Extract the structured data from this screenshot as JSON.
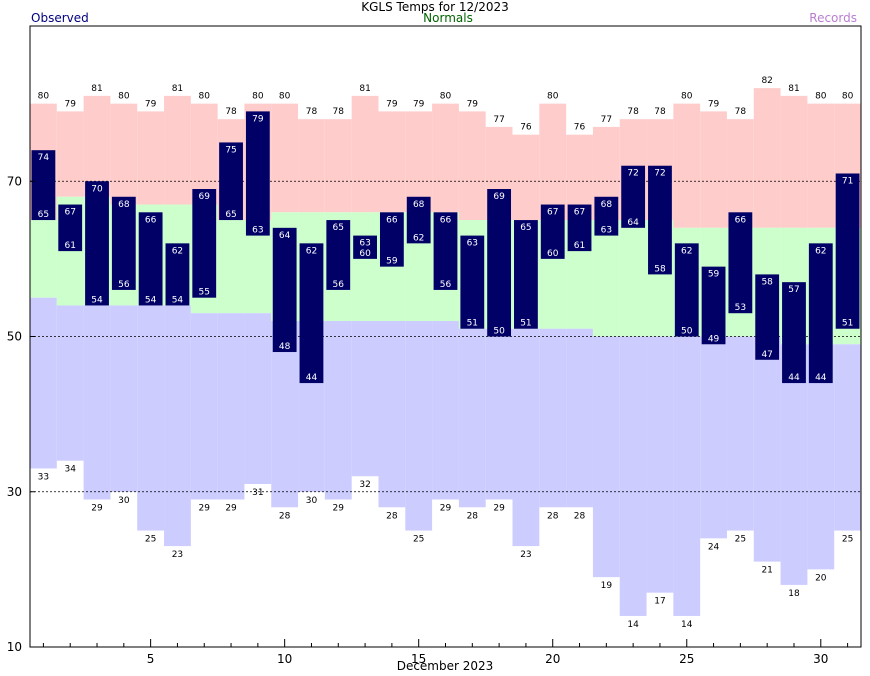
{
  "chart_data": {
    "type": "bar",
    "title": "KGLS Temps for 12/2023",
    "xlabel": "December 2023",
    "ylabel": "",
    "legend": [
      "Observed",
      "Normals",
      "Records"
    ],
    "colors": {
      "observed": "#000066",
      "normals": "#ccffcc",
      "record_high": "#ffcccc",
      "record_low": "#ccccff",
      "frame": "#000000"
    },
    "ylim": [
      10,
      90
    ],
    "xlim": [
      0.5,
      31.5
    ],
    "y_ticks": [
      10,
      30,
      50,
      70
    ],
    "x_ticks": [
      5,
      10,
      15,
      20,
      25,
      30
    ],
    "gridlines_y": [
      30,
      50,
      70
    ],
    "days": [
      1,
      2,
      3,
      4,
      5,
      6,
      7,
      8,
      9,
      10,
      11,
      12,
      13,
      14,
      15,
      16,
      17,
      18,
      19,
      20,
      21,
      22,
      23,
      24,
      25,
      26,
      27,
      28,
      29,
      30,
      31
    ],
    "series": [
      {
        "name": "Observed High",
        "values": [
          74,
          67,
          70,
          68,
          66,
          62,
          69,
          75,
          79,
          64,
          62,
          65,
          63,
          66,
          68,
          66,
          63,
          69,
          65,
          67,
          67,
          68,
          72,
          72,
          62,
          59,
          66,
          58,
          57,
          62,
          71
        ]
      },
      {
        "name": "Observed Low",
        "values": [
          65,
          61,
          54,
          56,
          54,
          54,
          55,
          65,
          63,
          48,
          44,
          56,
          60,
          59,
          62,
          56,
          51,
          50,
          51,
          60,
          61,
          63,
          64,
          58,
          50,
          49,
          53,
          47,
          44,
          44,
          51
        ]
      },
      {
        "name": "Record High",
        "values": [
          80,
          79,
          81,
          80,
          79,
          81,
          80,
          78,
          80,
          80,
          78,
          78,
          81,
          79,
          79,
          80,
          79,
          77,
          76,
          80,
          76,
          77,
          78,
          78,
          80,
          79,
          78,
          82,
          81,
          80,
          80
        ]
      },
      {
        "name": "Record Low",
        "values": [
          33,
          34,
          29,
          30,
          25,
          23,
          29,
          29,
          31,
          28,
          30,
          29,
          32,
          28,
          25,
          29,
          28,
          29,
          23,
          28,
          28,
          19,
          14,
          17,
          14,
          24,
          25,
          21,
          18,
          20,
          25
        ]
      },
      {
        "name": "Normal High",
        "values": [
          65,
          68,
          68,
          67,
          67,
          67,
          67,
          65,
          65,
          66,
          66,
          66,
          66,
          66,
          66,
          66,
          65,
          65,
          65,
          65,
          65,
          65,
          65,
          65,
          64,
          64,
          64,
          64,
          64,
          64,
          64
        ]
      },
      {
        "name": "Normal Low",
        "values": [
          55,
          54,
          54,
          54,
          54,
          54,
          53,
          53,
          53,
          52,
          52,
          52,
          52,
          52,
          52,
          52,
          51,
          51,
          51,
          51,
          51,
          50,
          50,
          50,
          50,
          50,
          50,
          50,
          49,
          49,
          49
        ]
      }
    ]
  }
}
